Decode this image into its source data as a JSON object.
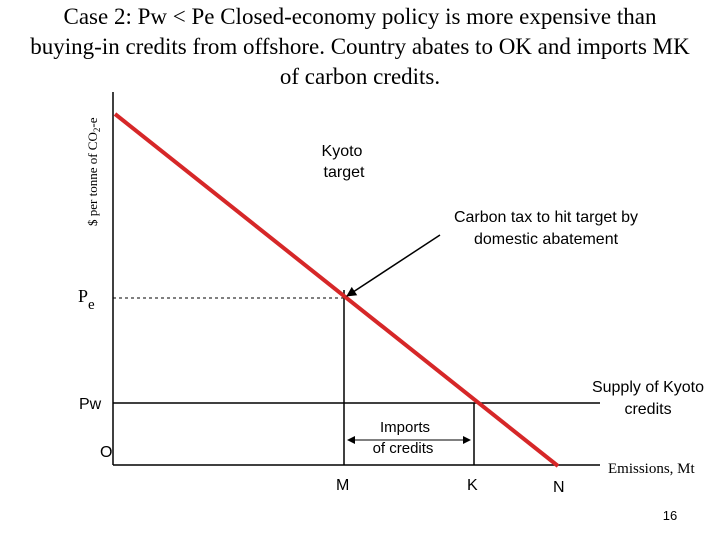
{
  "title": {
    "line1": "Case 2:   Pw < Pe  Closed-economy policy is more expensive than",
    "line2": "buying-in credits from offshore.  Country abates to OK and imports MK",
    "line3": "of carbon credits."
  },
  "axes": {
    "y_label_prefix": "$ per tonne of CO",
    "y_label_sub": "2",
    "y_label_suffix": "-e",
    "x_label": "Emissions, Mt",
    "origin": "O"
  },
  "price_labels": {
    "pe_main": "P",
    "pe_sub": "e",
    "pw": "Pw"
  },
  "x_ticks": {
    "m": "M",
    "k": "K",
    "n": "N"
  },
  "annotations": {
    "kyoto_line1": "Kyoto",
    "kyoto_line2": "target",
    "tax_line1": "Carbon tax to hit target by",
    "tax_line2": "domestic abatement",
    "supply_line1": "Supply of Kyoto",
    "supply_line2": "credits",
    "imports_line1": "Imports",
    "imports_line2": "of credits"
  },
  "page_number": "16",
  "colors": {
    "demand_curve": "#d62728",
    "lines": "#000000"
  }
}
